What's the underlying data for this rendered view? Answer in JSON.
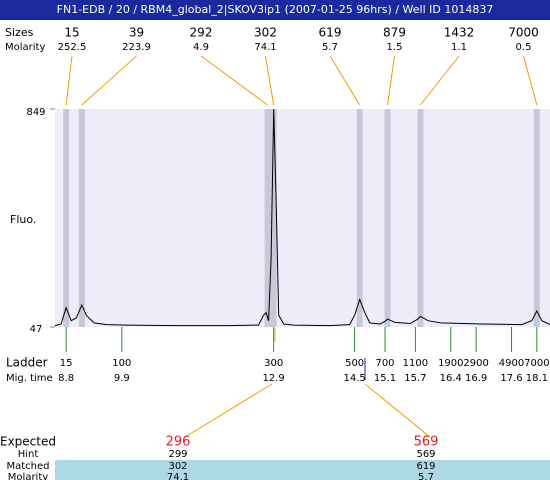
{
  "title": "FN1-EDB / 20 / RBM4_global_2|SKOV3ip1 (2007-01-25 96hrs) / Well ID 1014837",
  "chart_data": {
    "type": "electropherogram",
    "y_label": "Fluo.",
    "ylim": [
      47,
      849
    ],
    "yticks": [
      47,
      849
    ],
    "xlim": [
      8.58,
      18.36
    ],
    "peaks": {
      "size_label": "Sizes",
      "molarity_label": "Molarity",
      "sizes": [
        15,
        39,
        292,
        302,
        619,
        879,
        1432,
        7000
      ],
      "molarities": [
        252.5,
        223.9,
        4.9,
        74.1,
        5.7,
        1.5,
        1.1,
        0.5
      ],
      "times": [
        8.8,
        9.11,
        12.78,
        12.9,
        14.6,
        15.15,
        15.8,
        18.1
      ]
    },
    "ladder": {
      "label": "Ladder",
      "time_label": "Mig. time",
      "sizes": [
        15,
        100,
        300,
        500,
        700,
        1100,
        1900,
        2900,
        4900,
        7000
      ],
      "times": [
        8.8,
        9.9,
        12.9,
        14.5,
        15.1,
        15.7,
        16.4,
        16.9,
        17.6,
        18.1
      ]
    },
    "trace": {
      "color": "#000000",
      "x": [
        8.58,
        8.7,
        8.8,
        8.9,
        9.0,
        9.11,
        9.2,
        9.35,
        9.6,
        10.0,
        11.0,
        12.0,
        12.6,
        12.7,
        12.75,
        12.8,
        12.85,
        12.9,
        12.95,
        13.0,
        13.1,
        13.3,
        14.0,
        14.4,
        14.5,
        14.6,
        14.7,
        14.8,
        15.0,
        15.1,
        15.15,
        15.3,
        15.6,
        15.75,
        15.8,
        15.95,
        16.2,
        17.0,
        17.8,
        18.0,
        18.1,
        18.2,
        18.36
      ],
      "y": [
        52,
        58,
        118,
        70,
        80,
        128,
        90,
        62,
        56,
        54,
        52,
        52,
        54,
        90,
        100,
        70,
        300,
        849,
        500,
        90,
        58,
        54,
        52,
        56,
        90,
        148,
        100,
        62,
        58,
        68,
        76,
        64,
        60,
        76,
        86,
        70,
        62,
        58,
        56,
        70,
        106,
        70,
        56
      ]
    }
  },
  "expected_table": {
    "row_labels": [
      "Expected",
      "Hint",
      "Matched",
      "Molarity"
    ],
    "columns": [
      [
        296,
        299,
        302,
        74.1
      ],
      [
        569,
        569,
        619,
        5.7
      ]
    ]
  }
}
